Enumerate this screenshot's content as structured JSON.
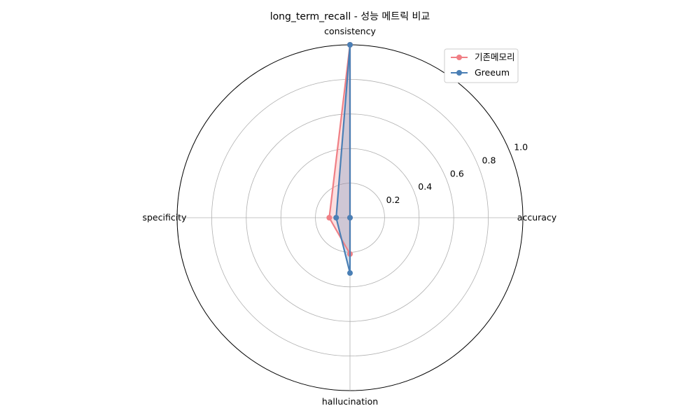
{
  "chart_data": {
    "type": "radar",
    "title": "long_term_recall - 성능 메트릭 비교",
    "axes": [
      "accuracy",
      "consistency",
      "specificity",
      "hallucination"
    ],
    "rlim": [
      0,
      1.0
    ],
    "r_ticks": [
      "0.2",
      "0.4",
      "0.6",
      "0.8",
      "1.0"
    ],
    "r_tick_values": [
      0.2,
      0.4,
      0.6,
      0.8,
      1.0
    ],
    "grid": true,
    "legend_position": "top-right",
    "series": [
      {
        "name": "기존메모리",
        "color": "#f07f85",
        "values": [
          0.0,
          1.0,
          0.12,
          0.21
        ]
      },
      {
        "name": "Greeum",
        "color": "#4a7fb5",
        "values": [
          0.0,
          1.0,
          0.08,
          0.32
        ]
      }
    ],
    "fill_color": "#9a8fb0"
  }
}
